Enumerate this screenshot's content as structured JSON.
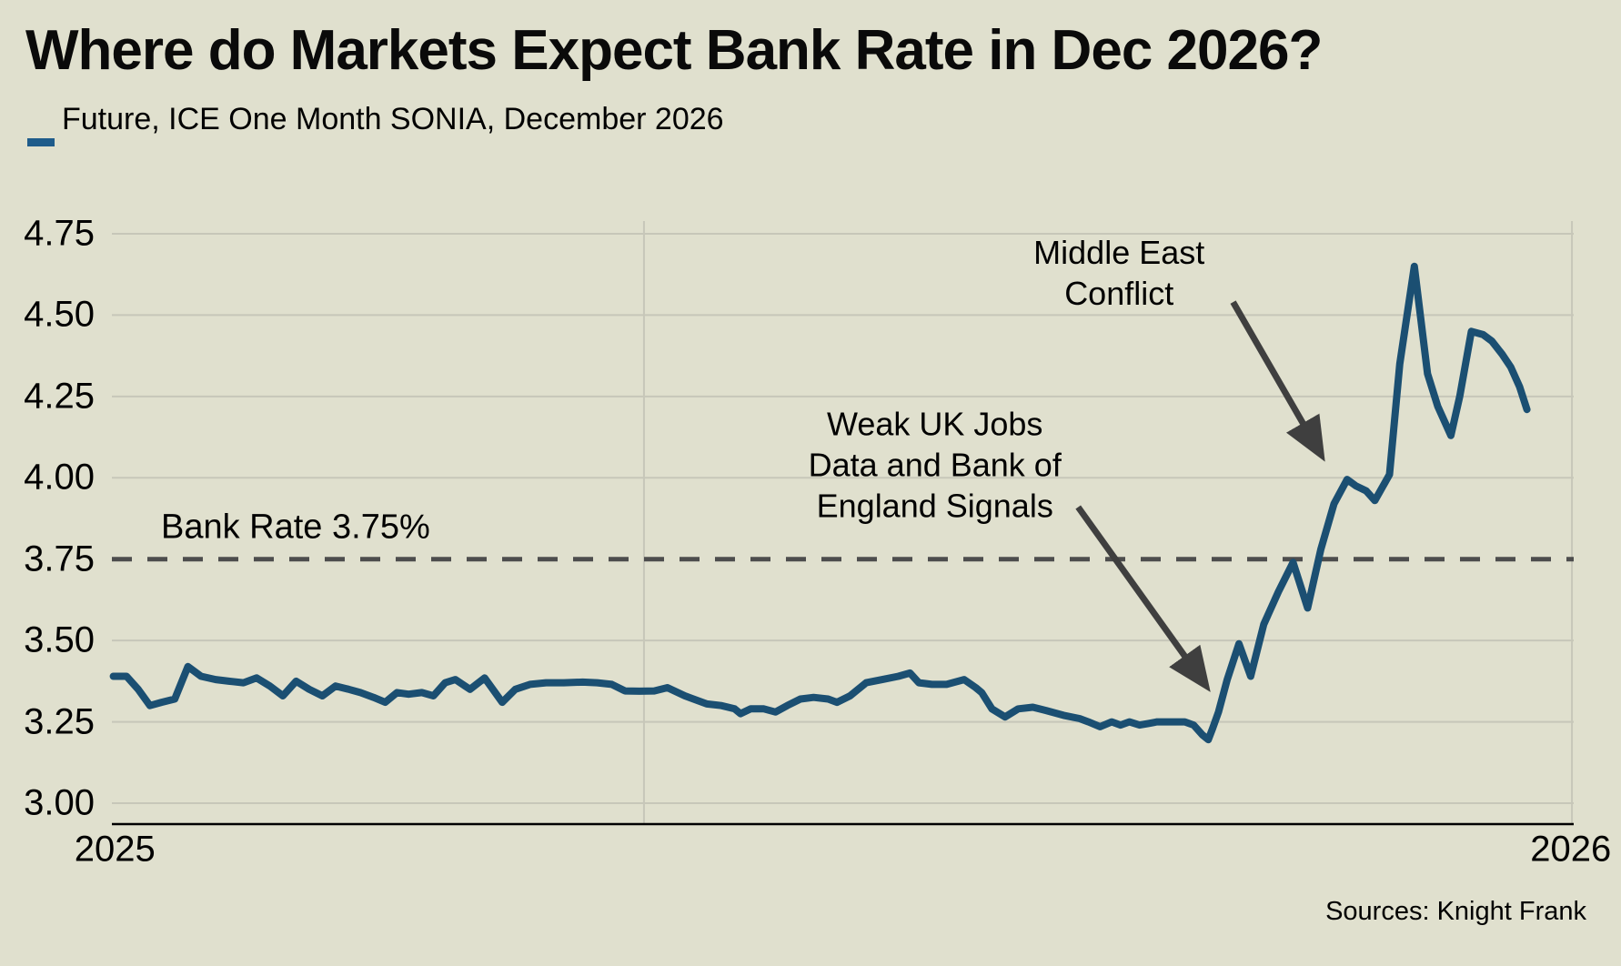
{
  "header": {
    "title": "Where do Markets Expect Bank Rate in Dec 2026?",
    "legend_label": "Future, ICE One Month SONIA, December 2026"
  },
  "footer": {
    "sources": "Sources: Knight Frank"
  },
  "colors": {
    "background": "#e0e0ce",
    "series_line": "#1b4f72",
    "legend_dash": "#1f5c8b",
    "gridline": "#c7c7b9",
    "axis_line": "#000000",
    "reference_dashed": "#4d4d4d",
    "arrow": "#3f3f3f",
    "text": "#000000"
  },
  "chart_data": {
    "type": "line",
    "title": "Where do Markets Expect Bank Rate in Dec 2026?",
    "xlabel": "",
    "ylabel": "",
    "ylim": [
      3.0,
      4.75
    ],
    "y_ticks": [
      "4.75",
      "4.50",
      "4.25",
      "4.00",
      "3.75",
      "3.50",
      "3.25",
      "3.00"
    ],
    "y_tick_values": [
      4.75,
      4.5,
      4.25,
      4.0,
      3.75,
      3.5,
      3.25,
      3.0
    ],
    "x_ticks": [
      {
        "pos": 0.002,
        "label": "2025"
      },
      {
        "pos": 0.998,
        "label": "2026"
      }
    ],
    "grid_vlines": [
      0.364,
      0.9988
    ],
    "grid": true,
    "legend_position": "top-left",
    "reference_line": {
      "value": 3.75,
      "label": "Bank Rate 3.75%"
    },
    "series": [
      {
        "name": "Future, ICE One Month SONIA, December 2026",
        "points": [
          [
            0.001,
            3.39
          ],
          [
            0.01,
            3.39
          ],
          [
            0.018,
            3.35
          ],
          [
            0.026,
            3.3
          ],
          [
            0.034,
            3.31
          ],
          [
            0.043,
            3.32
          ],
          [
            0.052,
            3.42
          ],
          [
            0.061,
            3.39
          ],
          [
            0.071,
            3.38
          ],
          [
            0.08,
            3.375
          ],
          [
            0.09,
            3.37
          ],
          [
            0.099,
            3.385
          ],
          [
            0.108,
            3.36
          ],
          [
            0.117,
            3.33
          ],
          [
            0.126,
            3.375
          ],
          [
            0.135,
            3.35
          ],
          [
            0.144,
            3.33
          ],
          [
            0.153,
            3.36
          ],
          [
            0.162,
            3.35
          ],
          [
            0.17,
            3.34
          ],
          [
            0.179,
            3.325
          ],
          [
            0.187,
            3.31
          ],
          [
            0.195,
            3.34
          ],
          [
            0.203,
            3.335
          ],
          [
            0.212,
            3.34
          ],
          [
            0.22,
            3.33
          ],
          [
            0.228,
            3.37
          ],
          [
            0.235,
            3.38
          ],
          [
            0.245,
            3.35
          ],
          [
            0.255,
            3.385
          ],
          [
            0.267,
            3.31
          ],
          [
            0.276,
            3.35
          ],
          [
            0.286,
            3.365
          ],
          [
            0.297,
            3.37
          ],
          [
            0.309,
            3.37
          ],
          [
            0.322,
            3.372
          ],
          [
            0.332,
            3.37
          ],
          [
            0.342,
            3.365
          ],
          [
            0.351,
            3.345
          ],
          [
            0.361,
            3.344
          ],
          [
            0.371,
            3.345
          ],
          [
            0.38,
            3.355
          ],
          [
            0.392,
            3.33
          ],
          [
            0.407,
            3.305
          ],
          [
            0.417,
            3.3
          ],
          [
            0.426,
            3.29
          ],
          [
            0.43,
            3.275
          ],
          [
            0.437,
            3.29
          ],
          [
            0.446,
            3.29
          ],
          [
            0.454,
            3.28
          ],
          [
            0.462,
            3.3
          ],
          [
            0.471,
            3.32
          ],
          [
            0.48,
            3.325
          ],
          [
            0.49,
            3.32
          ],
          [
            0.496,
            3.31
          ],
          [
            0.505,
            3.33
          ],
          [
            0.516,
            3.37
          ],
          [
            0.527,
            3.38
          ],
          [
            0.538,
            3.39
          ],
          [
            0.546,
            3.4
          ],
          [
            0.552,
            3.37
          ],
          [
            0.561,
            3.365
          ],
          [
            0.571,
            3.365
          ],
          [
            0.583,
            3.38
          ],
          [
            0.591,
            3.355
          ],
          [
            0.595,
            3.34
          ],
          [
            0.602,
            3.29
          ],
          [
            0.611,
            3.265
          ],
          [
            0.62,
            3.29
          ],
          [
            0.63,
            3.295
          ],
          [
            0.639,
            3.285
          ],
          [
            0.651,
            3.27
          ],
          [
            0.662,
            3.26
          ],
          [
            0.668,
            3.25
          ],
          [
            0.676,
            3.235
          ],
          [
            0.684,
            3.25
          ],
          [
            0.69,
            3.24
          ],
          [
            0.696,
            3.25
          ],
          [
            0.703,
            3.24
          ],
          [
            0.709,
            3.245
          ],
          [
            0.715,
            3.25
          ],
          [
            0.721,
            3.25
          ],
          [
            0.727,
            3.25
          ],
          [
            0.734,
            3.25
          ],
          [
            0.74,
            3.24
          ],
          [
            0.746,
            3.21
          ],
          [
            0.75,
            3.195
          ],
          [
            0.753,
            3.23
          ],
          [
            0.757,
            3.28
          ],
          [
            0.763,
            3.38
          ],
          [
            0.771,
            3.49
          ],
          [
            0.779,
            3.39
          ],
          [
            0.788,
            3.55
          ],
          [
            0.798,
            3.65
          ],
          [
            0.808,
            3.74
          ],
          [
            0.818,
            3.6
          ],
          [
            0.827,
            3.78
          ],
          [
            0.836,
            3.92
          ],
          [
            0.845,
            3.995
          ],
          [
            0.851,
            3.975
          ],
          [
            0.858,
            3.96
          ],
          [
            0.864,
            3.93
          ],
          [
            0.874,
            4.01
          ],
          [
            0.881,
            4.35
          ],
          [
            0.891,
            4.65
          ],
          [
            0.9,
            4.32
          ],
          [
            0.907,
            4.22
          ],
          [
            0.916,
            4.13
          ],
          [
            0.922,
            4.25
          ],
          [
            0.93,
            4.45
          ],
          [
            0.938,
            4.44
          ],
          [
            0.944,
            4.42
          ],
          [
            0.951,
            4.38
          ],
          [
            0.957,
            4.34
          ],
          [
            0.963,
            4.28
          ],
          [
            0.968,
            4.21
          ]
        ]
      }
    ],
    "annotations": [
      {
        "id": "middle-east-conflict",
        "text_lines": [
          "Middle East",
          "Conflict"
        ],
        "text_x": 0.689,
        "text_y": 4.63,
        "arrow_from": [
          0.767,
          4.54
        ],
        "arrow_to": [
          0.826,
          4.08
        ]
      },
      {
        "id": "weak-uk-jobs",
        "text_lines": [
          "Weak UK Jobs",
          "Data and Bank of",
          "England Signals"
        ],
        "text_x": 0.563,
        "text_y": 4.04,
        "arrow_from": [
          0.661,
          3.91
        ],
        "arrow_to": [
          0.747,
          3.37
        ]
      }
    ]
  }
}
